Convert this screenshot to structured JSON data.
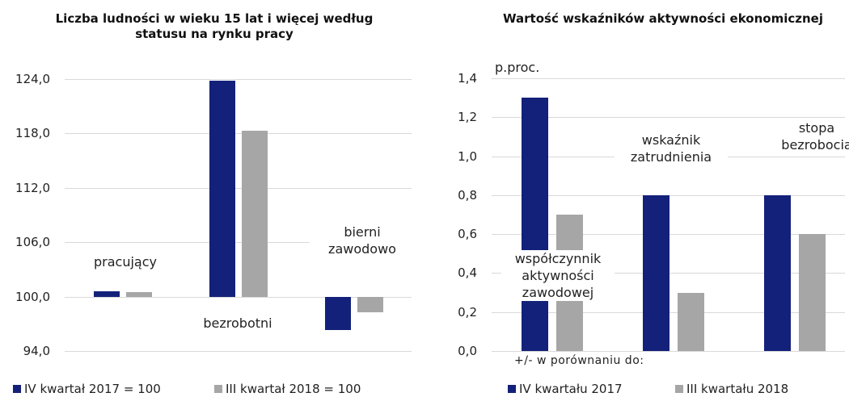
{
  "chart_data": [
    {
      "type": "bar",
      "title": "Liczba ludności w wieku 15 lat i więcej według statusu na rynku pracy",
      "categories": [
        "pracujący",
        "bezrobotni",
        "bierni zawodowo"
      ],
      "series": [
        {
          "name": "IV kwartał 2017 = 100",
          "color": "#13217a",
          "values": [
            100.6,
            123.8,
            96.3
          ]
        },
        {
          "name": "III kwartał 2018 = 100",
          "color": "#a6a6a6",
          "values": [
            100.5,
            118.3,
            98.3
          ]
        }
      ],
      "base": 100,
      "ylim": [
        94,
        124
      ],
      "yticks": [
        {
          "value": 94,
          "label": "94,0"
        },
        {
          "value": 100,
          "label": "100,0"
        },
        {
          "value": 106,
          "label": "106,0"
        },
        {
          "value": 112,
          "label": "112,0"
        },
        {
          "value": 118,
          "label": "118,0"
        },
        {
          "value": 124,
          "label": "124,0"
        }
      ],
      "grid": true,
      "legend": "bottom"
    },
    {
      "type": "bar",
      "title": "Wartość wskaźników aktywności ekonomicznej",
      "unit_label": "p.proc.",
      "annotation": "+/- w porównaniu do:",
      "categories": [
        "współczynnik aktywności zawodowej",
        "wskaźnik zatrudnienia",
        "stopa bezrobocia"
      ],
      "series": [
        {
          "name": "IV kwartału 2017",
          "color": "#13217a",
          "values": [
            1.3,
            0.8,
            0.8
          ]
        },
        {
          "name": "III kwartału 2018",
          "color": "#a6a6a6",
          "values": [
            0.7,
            0.3,
            0.6
          ]
        }
      ],
      "base": 0,
      "ylim": [
        0,
        1.4
      ],
      "yticks": [
        {
          "value": 0,
          "label": "0,0"
        },
        {
          "value": 0.2,
          "label": "0,2"
        },
        {
          "value": 0.4,
          "label": "0,4"
        },
        {
          "value": 0.6,
          "label": "0,6"
        },
        {
          "value": 0.8,
          "label": "0,8"
        },
        {
          "value": 1,
          "label": "1,0"
        },
        {
          "value": 1.2,
          "label": "1,2"
        },
        {
          "value": 1.4,
          "label": "1,4"
        }
      ],
      "grid": true,
      "legend": "bottom"
    }
  ]
}
